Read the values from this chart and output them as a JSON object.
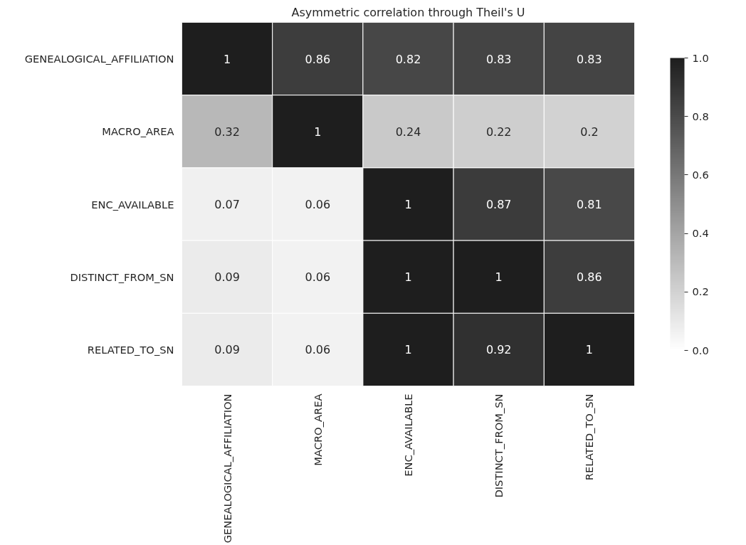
{
  "chart_data": {
    "type": "heatmap",
    "title": "Asymmetric correlation through Theil's U",
    "categories": [
      "GENEALOGICAL_AFFILIATION",
      "MACRO_AREA",
      "ENC_AVAILABLE",
      "DISTINCT_FROM_SN",
      "RELATED_TO_SN"
    ],
    "y_categories": [
      "GENEALOGICAL_AFFILIATION",
      "MACRO_AREA",
      "ENC_AVAILABLE",
      "DISTINCT_FROM_SN",
      "RELATED_TO_SN"
    ],
    "cells": [
      [
        1,
        0.86,
        0.82,
        0.83,
        0.83
      ],
      [
        0.32,
        1,
        0.24,
        0.22,
        0.2
      ],
      [
        0.07,
        0.06,
        1,
        0.87,
        0.81
      ],
      [
        0.09,
        0.06,
        1,
        1,
        0.86
      ],
      [
        0.09,
        0.06,
        1,
        0.92,
        1
      ]
    ],
    "data_labels": true,
    "clim": [
      0,
      1
    ],
    "cticks": [
      {
        "value": 0,
        "label": "0.0"
      },
      0.2,
      0.4,
      0.6,
      0.8,
      {
        "value": 1,
        "label": "1.0"
      }
    ]
  }
}
